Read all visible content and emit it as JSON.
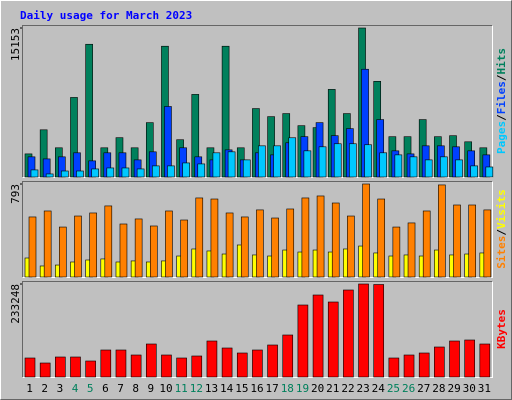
{
  "chart_data": [
    {
      "type": "bar",
      "title": "Daily usage for March 2023",
      "categories": [
        "1",
        "2",
        "3",
        "4",
        "5",
        "6",
        "7",
        "8",
        "9",
        "10",
        "11",
        "12",
        "13",
        "14",
        "15",
        "16",
        "17",
        "18",
        "19",
        "20",
        "21",
        "22",
        "23",
        "24",
        "25",
        "26",
        "27",
        "28",
        "29",
        "30",
        "31"
      ],
      "category_colors": [
        "#000000",
        "#000000",
        "#000000",
        "#00805c",
        "#00805c",
        "#000000",
        "#000000",
        "#000000",
        "#000000",
        "#000000",
        "#00805c",
        "#00805c",
        "#000000",
        "#000000",
        "#000000",
        "#000000",
        "#000000",
        "#00805c",
        "#00805c",
        "#000000",
        "#000000",
        "#000000",
        "#000000",
        "#000000",
        "#00805c",
        "#00805c",
        "#000000",
        "#000000",
        "#000000",
        "#000000",
        "#000000"
      ],
      "legend_separator": "/",
      "ylim": [
        0,
        15153
      ],
      "yticks": [
        15153
      ],
      "series": [
        {
          "name": "Pages",
          "color": "#00c8ff",
          "values": [
            720,
            310,
            610,
            610,
            820,
            920,
            920,
            820,
            1130,
            1130,
            1430,
            1330,
            2460,
            2560,
            1740,
            3170,
            3170,
            3990,
            2660,
            3070,
            3380,
            3380,
            3280,
            2460,
            2250,
            2050,
            1740,
            2050,
            1740,
            1130,
            1020
          ]
        },
        {
          "name": "Files",
          "color": "#0040ff",
          "values": [
            2050,
            1840,
            2050,
            2460,
            1640,
            2460,
            2460,
            1740,
            2560,
            7170,
            2970,
            2050,
            1740,
            2760,
            1740,
            2460,
            2250,
            3480,
            4100,
            5530,
            4200,
            4920,
            10960,
            5840,
            2660,
            2350,
            3170,
            3170,
            3070,
            2660,
            2250
          ]
        },
        {
          "name": "Hits",
          "color": "#00805c",
          "values": [
            2350,
            4800,
            2970,
            8090,
            13500,
            2970,
            4000,
            2970,
            5530,
            13300,
            3790,
            8400,
            2970,
            13300,
            2970,
            6960,
            6140,
            6450,
            5220,
            5020,
            8910,
            6450,
            15153,
            9730,
            4100,
            4100,
            5840,
            4100,
            4200,
            3580,
            2970
          ]
        }
      ]
    },
    {
      "type": "bar",
      "legend_separator": "/",
      "ylim": [
        0,
        793
      ],
      "yticks": [
        793
      ],
      "series": [
        {
          "name": "Sites",
          "color": "#ff8000",
          "values": [
            512,
            563,
            426,
            520,
            546,
            606,
            452,
            495,
            435,
            563,
            486,
            674,
            665,
            546,
            512,
            572,
            503,
            580,
            674,
            691,
            631,
            520,
            793,
            665,
            426,
            461,
            563,
            785,
            614,
            614,
            572
          ]
        },
        {
          "name": "Visits",
          "color": "#ffff00",
          "values": [
            162,
            94,
            102,
            128,
            145,
            154,
            128,
            137,
            128,
            137,
            179,
            239,
            222,
            196,
            273,
            188,
            179,
            230,
            213,
            230,
            213,
            239,
            264,
            205,
            179,
            188,
            179,
            230,
            188,
            196,
            205
          ]
        }
      ]
    },
    {
      "type": "bar",
      "ylim": [
        0,
        233248
      ],
      "yticks": [
        233248
      ],
      "series": [
        {
          "name": "KBytes",
          "color": "#ff0000",
          "values": [
            47650,
            35100,
            50160,
            50160,
            40130,
            67720,
            67720,
            55180,
            82760,
            55180,
            47650,
            52670,
            90290,
            72730,
            60190,
            67720,
            80260,
            105340,
            180580,
            205660,
            188100,
            218200,
            233248,
            232000,
            47650,
            55180,
            60190,
            75240,
            90290,
            92800,
            82760
          ]
        }
      ]
    }
  ]
}
